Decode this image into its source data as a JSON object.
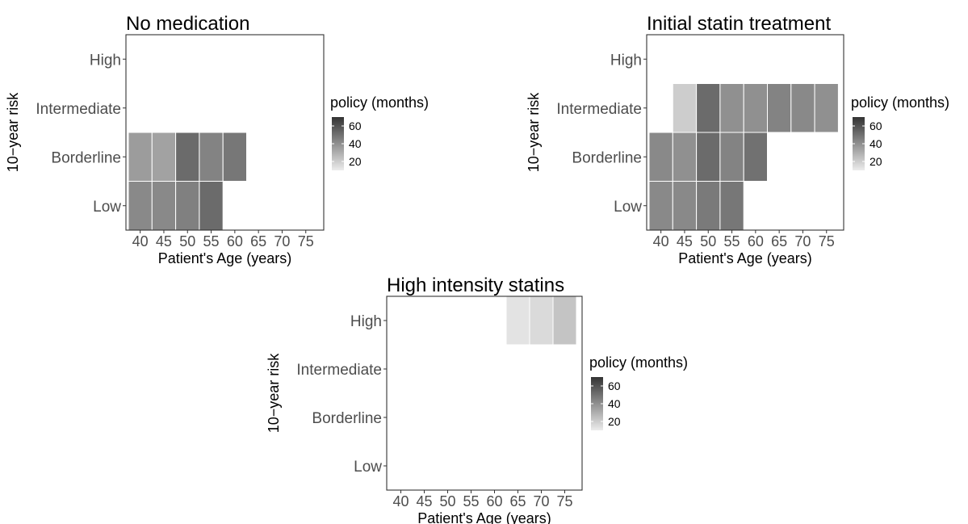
{
  "chart_data": [
    {
      "type": "heatmap",
      "title": "No medication",
      "xlabel": "Patient's Age (years)",
      "ylabel": "10−year risk",
      "x_categories": [
        "40",
        "45",
        "50",
        "55",
        "60",
        "65",
        "70",
        "75"
      ],
      "y_categories": [
        "Low",
        "Borderline",
        "Intermediate",
        "High"
      ],
      "legend_title": "policy (months)",
      "legend_ticks": [
        "60",
        "40",
        "20"
      ],
      "value_range": [
        10,
        70
      ],
      "cells": [
        {
          "x": "40",
          "y": "Low",
          "value": 42
        },
        {
          "x": "45",
          "y": "Low",
          "value": 42
        },
        {
          "x": "50",
          "y": "Low",
          "value": 45
        },
        {
          "x": "55",
          "y": "Low",
          "value": 52
        },
        {
          "x": "40",
          "y": "Borderline",
          "value": 36
        },
        {
          "x": "45",
          "y": "Borderline",
          "value": 34
        },
        {
          "x": "50",
          "y": "Borderline",
          "value": 52
        },
        {
          "x": "55",
          "y": "Borderline",
          "value": 44
        },
        {
          "x": "60",
          "y": "Borderline",
          "value": 48
        }
      ]
    },
    {
      "type": "heatmap",
      "title": "Initial statin treatment",
      "xlabel": "Patient's Age (years)",
      "ylabel": "10−year risk",
      "x_categories": [
        "40",
        "45",
        "50",
        "55",
        "60",
        "65",
        "70",
        "75"
      ],
      "y_categories": [
        "Low",
        "Borderline",
        "Intermediate",
        "High"
      ],
      "legend_title": "policy (months)",
      "legend_ticks": [
        "60",
        "40",
        "20"
      ],
      "value_range": [
        10,
        70
      ],
      "cells": [
        {
          "x": "40",
          "y": "Low",
          "value": 42
        },
        {
          "x": "45",
          "y": "Low",
          "value": 42
        },
        {
          "x": "50",
          "y": "Low",
          "value": 47
        },
        {
          "x": "55",
          "y": "Low",
          "value": 48
        },
        {
          "x": "40",
          "y": "Borderline",
          "value": 42
        },
        {
          "x": "45",
          "y": "Borderline",
          "value": 40
        },
        {
          "x": "50",
          "y": "Borderline",
          "value": 52
        },
        {
          "x": "55",
          "y": "Borderline",
          "value": 44
        },
        {
          "x": "60",
          "y": "Borderline",
          "value": 50
        },
        {
          "x": "45",
          "y": "Intermediate",
          "value": 20
        },
        {
          "x": "50",
          "y": "Intermediate",
          "value": 52
        },
        {
          "x": "55",
          "y": "Intermediate",
          "value": 40
        },
        {
          "x": "60",
          "y": "Intermediate",
          "value": 40
        },
        {
          "x": "65",
          "y": "Intermediate",
          "value": 44
        },
        {
          "x": "70",
          "y": "Intermediate",
          "value": 42
        },
        {
          "x": "75",
          "y": "Intermediate",
          "value": 40
        }
      ]
    },
    {
      "type": "heatmap",
      "title": "High intensity statins",
      "xlabel": "Patient's Age (years)",
      "ylabel": "10−year risk",
      "x_categories": [
        "40",
        "45",
        "50",
        "55",
        "60",
        "65",
        "70",
        "75"
      ],
      "y_categories": [
        "Low",
        "Borderline",
        "Intermediate",
        "High"
      ],
      "legend_title": "policy (months)",
      "legend_ticks": [
        "60",
        "40",
        "20"
      ],
      "value_range": [
        10,
        70
      ],
      "cells": [
        {
          "x": "65",
          "y": "High",
          "value": 13
        },
        {
          "x": "70",
          "y": "High",
          "value": 16
        },
        {
          "x": "75",
          "y": "High",
          "value": 23
        }
      ]
    }
  ]
}
